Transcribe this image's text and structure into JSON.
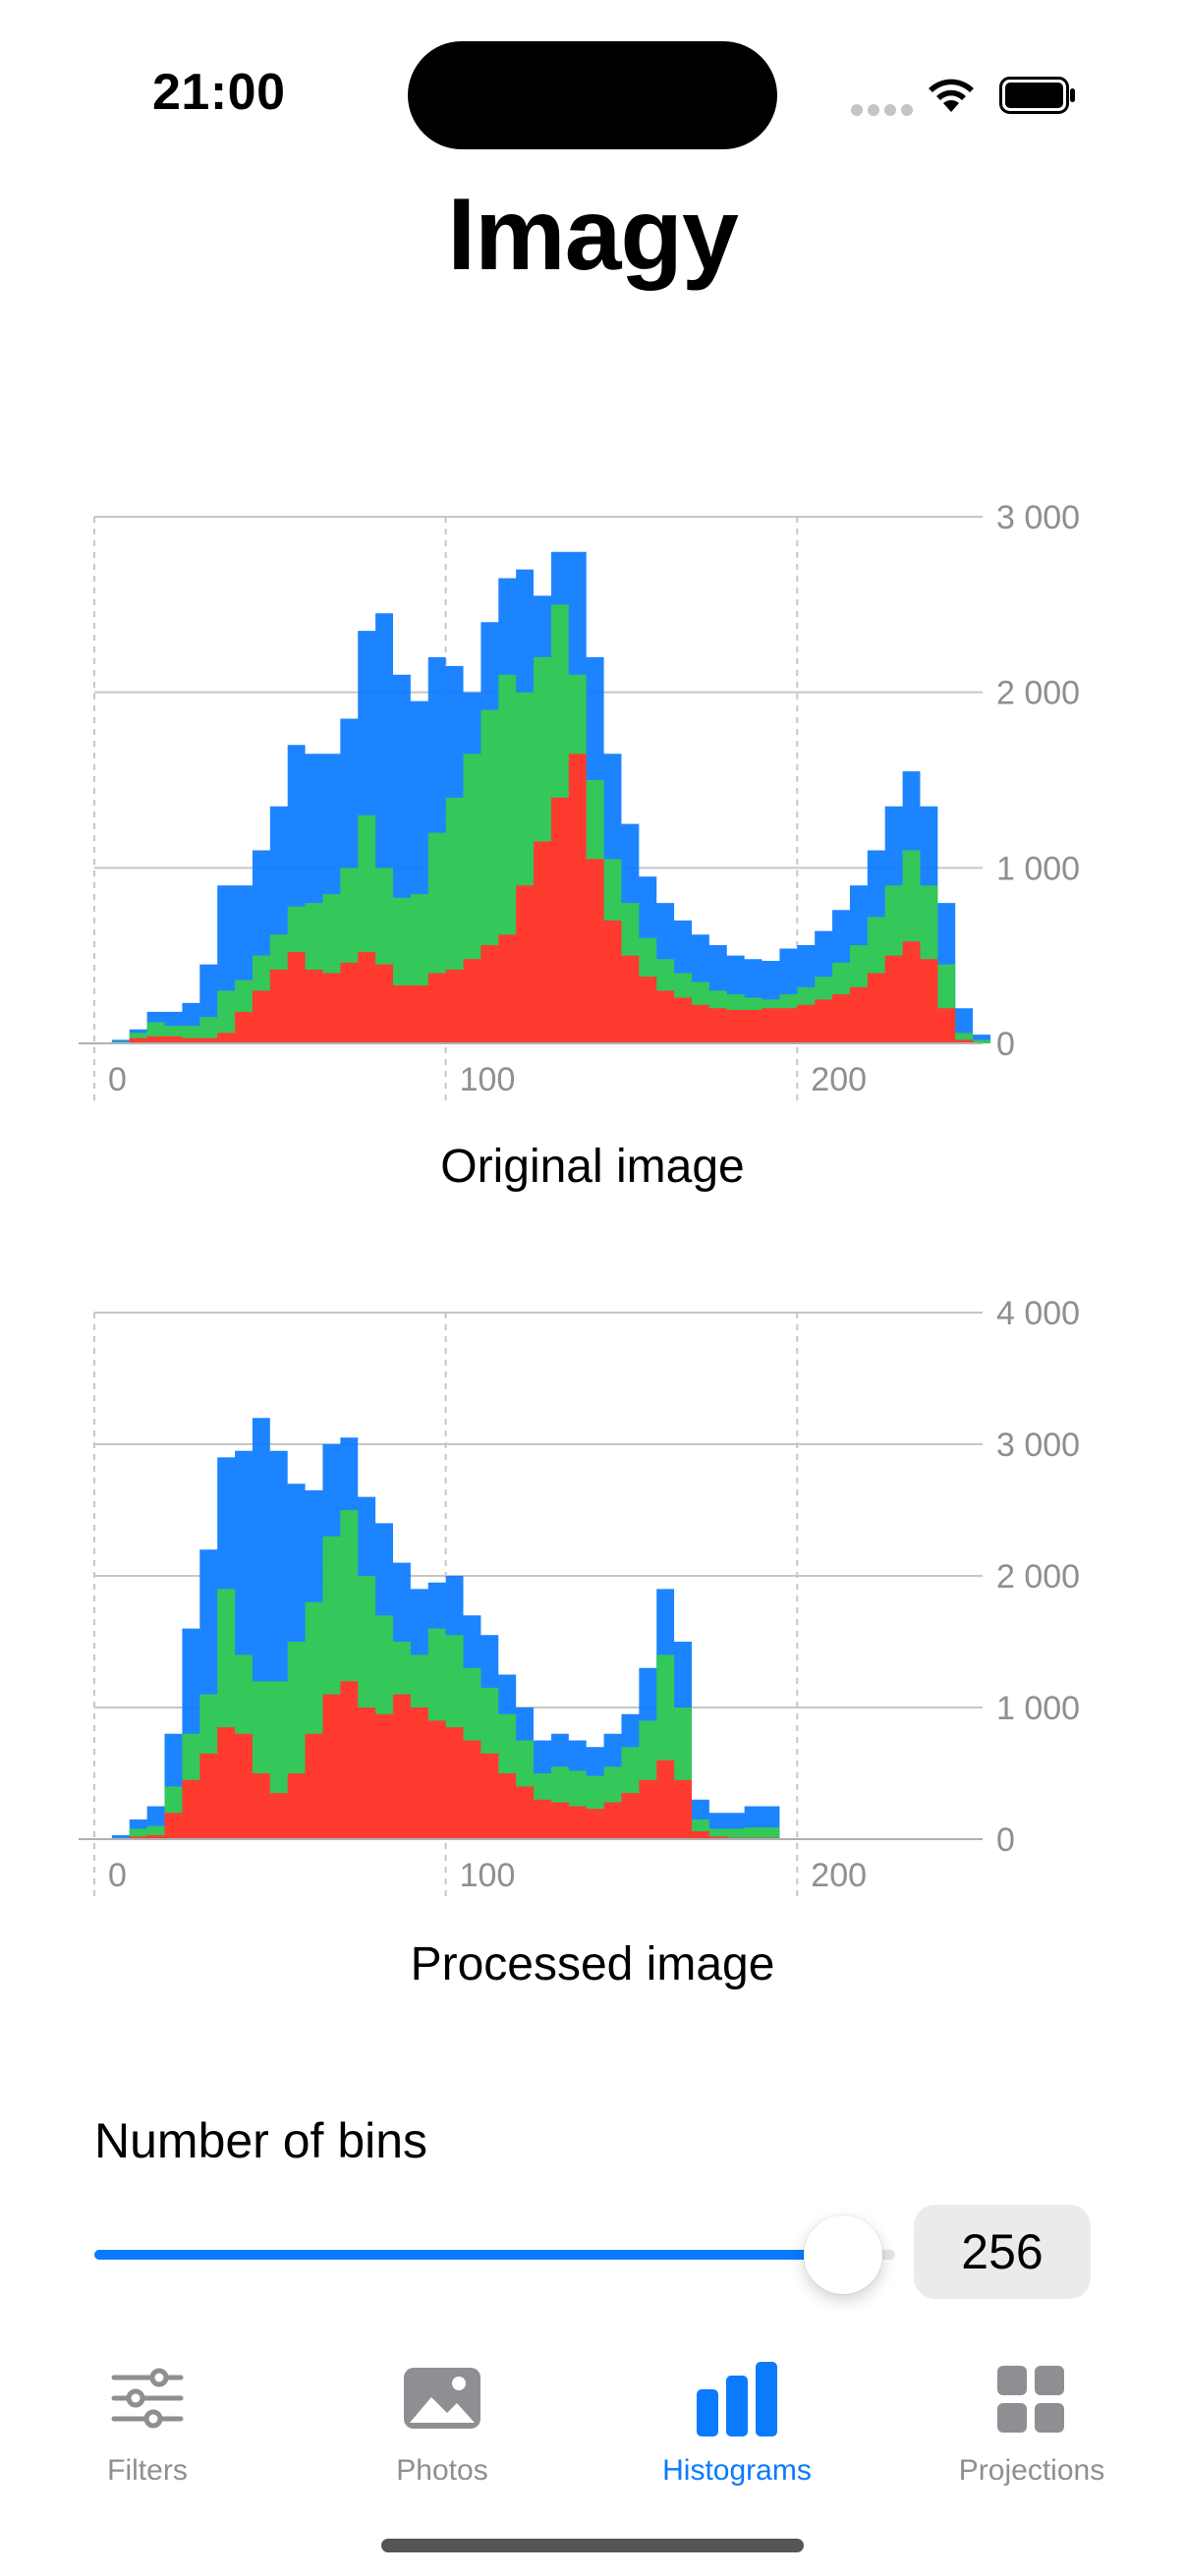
{
  "status_bar": {
    "time": "21:00"
  },
  "app": {
    "title": "Imagy"
  },
  "colors": {
    "red": "#ff3b30",
    "green": "#34c759",
    "blue": "#0a7aff"
  },
  "charts": {
    "original": {
      "caption": "Original image",
      "y_ticks": [
        "3 000",
        "2 000",
        "1 000",
        "0"
      ],
      "x_ticks": [
        "0",
        "100",
        "200"
      ]
    },
    "processed": {
      "caption": "Processed image",
      "y_ticks": [
        "4 000",
        "3 000",
        "2 000",
        "1 000",
        "0"
      ],
      "x_ticks": [
        "0",
        "100",
        "200"
      ]
    }
  },
  "chart_data": [
    {
      "type": "area",
      "title": "Original image",
      "xlim": [
        0,
        255
      ],
      "ylim": [
        0,
        3000
      ],
      "grid": true,
      "series": [
        {
          "color": "#0a7aff",
          "x": [
            0,
            5,
            10,
            15,
            20,
            25,
            30,
            35,
            40,
            45,
            50,
            55,
            60,
            65,
            70,
            75,
            80,
            85,
            90,
            95,
            100,
            105,
            110,
            115,
            120,
            125,
            130,
            135,
            140,
            145,
            150,
            155,
            160,
            165,
            170,
            175,
            180,
            185,
            190,
            195,
            200,
            205,
            210,
            215,
            220,
            225,
            230,
            235,
            240,
            245,
            250,
            255
          ],
          "values": [
            0,
            20,
            80,
            180,
            180,
            230,
            450,
            900,
            900,
            1100,
            1350,
            1700,
            1650,
            1650,
            1850,
            2350,
            2450,
            2100,
            1950,
            2200,
            2150,
            2000,
            2400,
            2650,
            2700,
            2550,
            2800,
            2800,
            2200,
            1650,
            1250,
            950,
            800,
            700,
            620,
            560,
            500,
            480,
            470,
            540,
            560,
            640,
            760,
            900,
            1100,
            1350,
            1550,
            1350,
            800,
            200,
            50,
            0
          ]
        },
        {
          "color": "#34c759",
          "x": [
            0,
            5,
            10,
            15,
            20,
            25,
            30,
            35,
            40,
            45,
            50,
            55,
            60,
            65,
            70,
            75,
            80,
            85,
            90,
            95,
            100,
            105,
            110,
            115,
            120,
            125,
            130,
            135,
            140,
            145,
            150,
            155,
            160,
            165,
            170,
            175,
            180,
            185,
            190,
            195,
            200,
            205,
            210,
            215,
            220,
            225,
            230,
            235,
            240,
            245,
            250,
            255
          ],
          "values": [
            0,
            10,
            60,
            120,
            100,
            100,
            150,
            300,
            360,
            500,
            620,
            780,
            800,
            850,
            1000,
            1300,
            1000,
            830,
            850,
            1200,
            1400,
            1650,
            1900,
            2100,
            2000,
            2200,
            2500,
            2100,
            1500,
            1050,
            800,
            600,
            480,
            400,
            350,
            300,
            280,
            260,
            250,
            280,
            320,
            380,
            460,
            560,
            720,
            900,
            1100,
            900,
            450,
            60,
            20,
            0
          ]
        },
        {
          "color": "#ff3b30",
          "x": [
            0,
            5,
            10,
            15,
            20,
            25,
            30,
            35,
            40,
            45,
            50,
            55,
            60,
            65,
            70,
            75,
            80,
            85,
            90,
            95,
            100,
            105,
            110,
            115,
            120,
            125,
            130,
            135,
            140,
            145,
            150,
            155,
            160,
            165,
            170,
            175,
            180,
            185,
            190,
            195,
            200,
            205,
            210,
            215,
            220,
            225,
            230,
            235,
            240,
            245,
            250,
            255
          ],
          "values": [
            0,
            0,
            30,
            40,
            40,
            30,
            30,
            60,
            180,
            300,
            420,
            520,
            420,
            400,
            460,
            520,
            450,
            330,
            330,
            400,
            420,
            480,
            560,
            620,
            900,
            1150,
            1400,
            1650,
            1050,
            700,
            500,
            380,
            300,
            260,
            220,
            200,
            190,
            190,
            200,
            200,
            220,
            250,
            280,
            320,
            400,
            500,
            580,
            480,
            200,
            20,
            0,
            0
          ]
        }
      ]
    },
    {
      "type": "area",
      "title": "Processed image",
      "xlim": [
        0,
        255
      ],
      "ylim": [
        0,
        4000
      ],
      "grid": true,
      "series": [
        {
          "color": "#0a7aff",
          "x": [
            0,
            5,
            10,
            15,
            20,
            25,
            30,
            35,
            40,
            45,
            50,
            55,
            60,
            65,
            70,
            75,
            80,
            85,
            90,
            95,
            100,
            105,
            110,
            115,
            120,
            125,
            130,
            135,
            140,
            145,
            150,
            155,
            160,
            165,
            170,
            175,
            180,
            185,
            190,
            195,
            200,
            205,
            210,
            215,
            220,
            225,
            230,
            235,
            240,
            245,
            250,
            255
          ],
          "values": [
            0,
            30,
            150,
            250,
            800,
            1600,
            2200,
            2900,
            2950,
            3200,
            2950,
            2700,
            2650,
            3000,
            3050,
            2600,
            2400,
            2100,
            1900,
            1950,
            2000,
            1700,
            1550,
            1250,
            1000,
            750,
            800,
            750,
            700,
            800,
            950,
            1300,
            1900,
            1500,
            300,
            200,
            200,
            250,
            250,
            0,
            0,
            0,
            0,
            0,
            0,
            0,
            0,
            0,
            0,
            0,
            0,
            0
          ]
        },
        {
          "color": "#34c759",
          "x": [
            0,
            5,
            10,
            15,
            20,
            25,
            30,
            35,
            40,
            45,
            50,
            55,
            60,
            65,
            70,
            75,
            80,
            85,
            90,
            95,
            100,
            105,
            110,
            115,
            120,
            125,
            130,
            135,
            140,
            145,
            150,
            155,
            160,
            165,
            170,
            175,
            180,
            185,
            190,
            195,
            200,
            205,
            210,
            215,
            220,
            225,
            230,
            235,
            240,
            245,
            250,
            255
          ],
          "values": [
            0,
            10,
            80,
            100,
            400,
            800,
            1100,
            1900,
            1400,
            1200,
            1200,
            1500,
            1800,
            2300,
            2500,
            2000,
            1700,
            1500,
            1400,
            1600,
            1550,
            1300,
            1150,
            950,
            750,
            500,
            550,
            520,
            480,
            550,
            700,
            900,
            1400,
            1000,
            150,
            80,
            80,
            90,
            90,
            0,
            0,
            0,
            0,
            0,
            0,
            0,
            0,
            0,
            0,
            0,
            0,
            0
          ]
        },
        {
          "color": "#ff3b30",
          "x": [
            0,
            5,
            10,
            15,
            20,
            25,
            30,
            35,
            40,
            45,
            50,
            55,
            60,
            65,
            70,
            75,
            80,
            85,
            90,
            95,
            100,
            105,
            110,
            115,
            120,
            125,
            130,
            135,
            140,
            145,
            150,
            155,
            160,
            165,
            170,
            175,
            180,
            185,
            190,
            195,
            200,
            205,
            210,
            215,
            220,
            225,
            230,
            235,
            240,
            245,
            250,
            255
          ],
          "values": [
            0,
            0,
            20,
            30,
            200,
            450,
            650,
            850,
            800,
            500,
            350,
            500,
            800,
            1100,
            1200,
            1000,
            950,
            1100,
            1000,
            900,
            850,
            750,
            650,
            500,
            400,
            300,
            280,
            250,
            230,
            280,
            350,
            450,
            600,
            450,
            60,
            20,
            10,
            10,
            10,
            0,
            0,
            0,
            0,
            0,
            0,
            0,
            0,
            0,
            0,
            0,
            0,
            0
          ]
        }
      ]
    }
  ],
  "controls": {
    "bins_label": "Number of bins",
    "bins_value": "256",
    "bins_fraction": 0.935
  },
  "tab_bar": {
    "items": [
      {
        "label": "Filters",
        "icon": "sliders-icon",
        "active": false
      },
      {
        "label": "Photos",
        "icon": "photo-icon",
        "active": false
      },
      {
        "label": "Histograms",
        "icon": "bar-chart-icon",
        "active": true
      },
      {
        "label": "Projections",
        "icon": "grid-icon",
        "active": false
      }
    ]
  }
}
